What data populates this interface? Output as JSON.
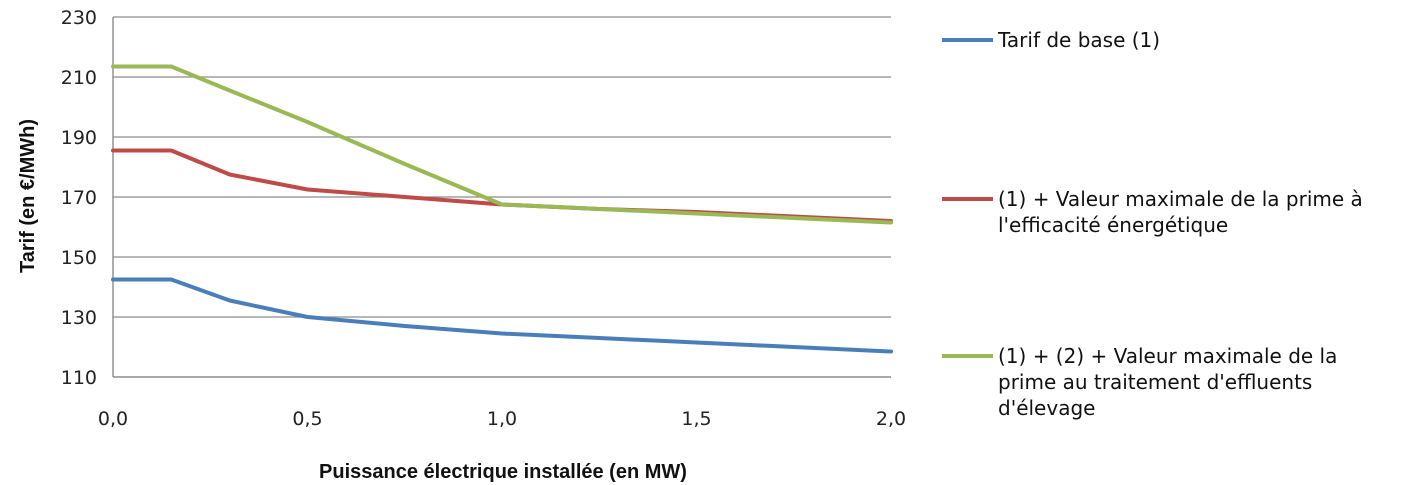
{
  "chart_data": {
    "type": "line",
    "title": "",
    "xlabel": "Puissance électrique installée (en MW)",
    "ylabel": "Tarif (en €/MWh)",
    "xlim": [
      0,
      2
    ],
    "ylim": [
      110,
      230
    ],
    "x_ticks": [
      "0,0",
      "0,5",
      "1,0",
      "1,5",
      "2,0"
    ],
    "y_ticks": [
      "110",
      "130",
      "150",
      "170",
      "190",
      "210",
      "230"
    ],
    "grid": "horizontal",
    "legend_position": "right",
    "series": [
      {
        "name": "Tarif de base (1)",
        "color": "#4a7ebb",
        "x": [
          0,
          0.15,
          0.3,
          0.5,
          0.75,
          1.0,
          1.25,
          1.5,
          1.75,
          2.0
        ],
        "y": [
          142.5,
          142.5,
          135.5,
          130,
          127,
          124.5,
          123,
          121.5,
          120,
          118.5
        ]
      },
      {
        "name": "(1) + Valeur maximale de la prime à l'efficacité énergétique",
        "color": "#be4b48",
        "x": [
          0,
          0.15,
          0.3,
          0.5,
          0.75,
          1.0,
          1.25,
          1.5,
          1.75,
          2.0
        ],
        "y": [
          185.5,
          185.5,
          177.5,
          172.5,
          170,
          167.5,
          166,
          165,
          163.5,
          162
        ]
      },
      {
        "name": "(1) + (2) + Valeur maximale de la prime au traitement d'effluents d'élevage",
        "color": "#98b954",
        "x": [
          0,
          0.15,
          0.3,
          0.5,
          0.75,
          1.0,
          1.25,
          1.5,
          1.75,
          2.0
        ],
        "y": [
          213.5,
          213.5,
          205.5,
          195,
          181,
          167.5,
          166,
          164.5,
          163,
          161.5
        ]
      }
    ]
  }
}
